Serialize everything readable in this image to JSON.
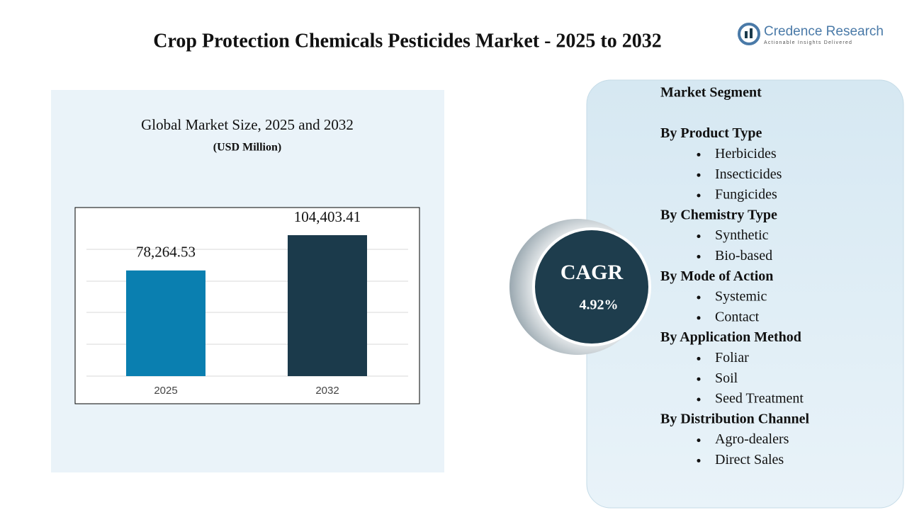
{
  "header": {
    "title": "Crop Protection Chemicals Pesticides Market - 2025 to 2032",
    "logo": {
      "name": "Credence Research",
      "tagline": "Actionable Insights Delivered"
    }
  },
  "chart_data": {
    "type": "bar",
    "title": "Global Market Size, 2025 and 2032",
    "subtitle": "(USD Million)",
    "categories": [
      "2025",
      "2032"
    ],
    "values": [
      78264.53,
      104403.41
    ],
    "value_labels": [
      "78,264.53",
      "104,403.41"
    ],
    "colors": [
      "#0a7fb0",
      "#1b3a4b"
    ]
  },
  "cagr": {
    "label": "CAGR",
    "value": "4.92%"
  },
  "segments": {
    "title": "Market Segment",
    "groups": [
      {
        "name": "By Product Type",
        "items": [
          "Herbicides",
          "Insecticides",
          "Fungicides"
        ]
      },
      {
        "name": "By Chemistry Type",
        "items": [
          "Synthetic",
          "Bio-based"
        ]
      },
      {
        "name": "By Mode of Action",
        "items": [
          "Systemic",
          "Contact"
        ]
      },
      {
        "name": "By Application Method",
        "items": [
          "Foliar",
          "Soil",
          "Seed Treatment"
        ]
      },
      {
        "name": "By Distribution Channel",
        "items": [
          "Agro-dealers",
          "Direct Sales"
        ]
      }
    ]
  }
}
